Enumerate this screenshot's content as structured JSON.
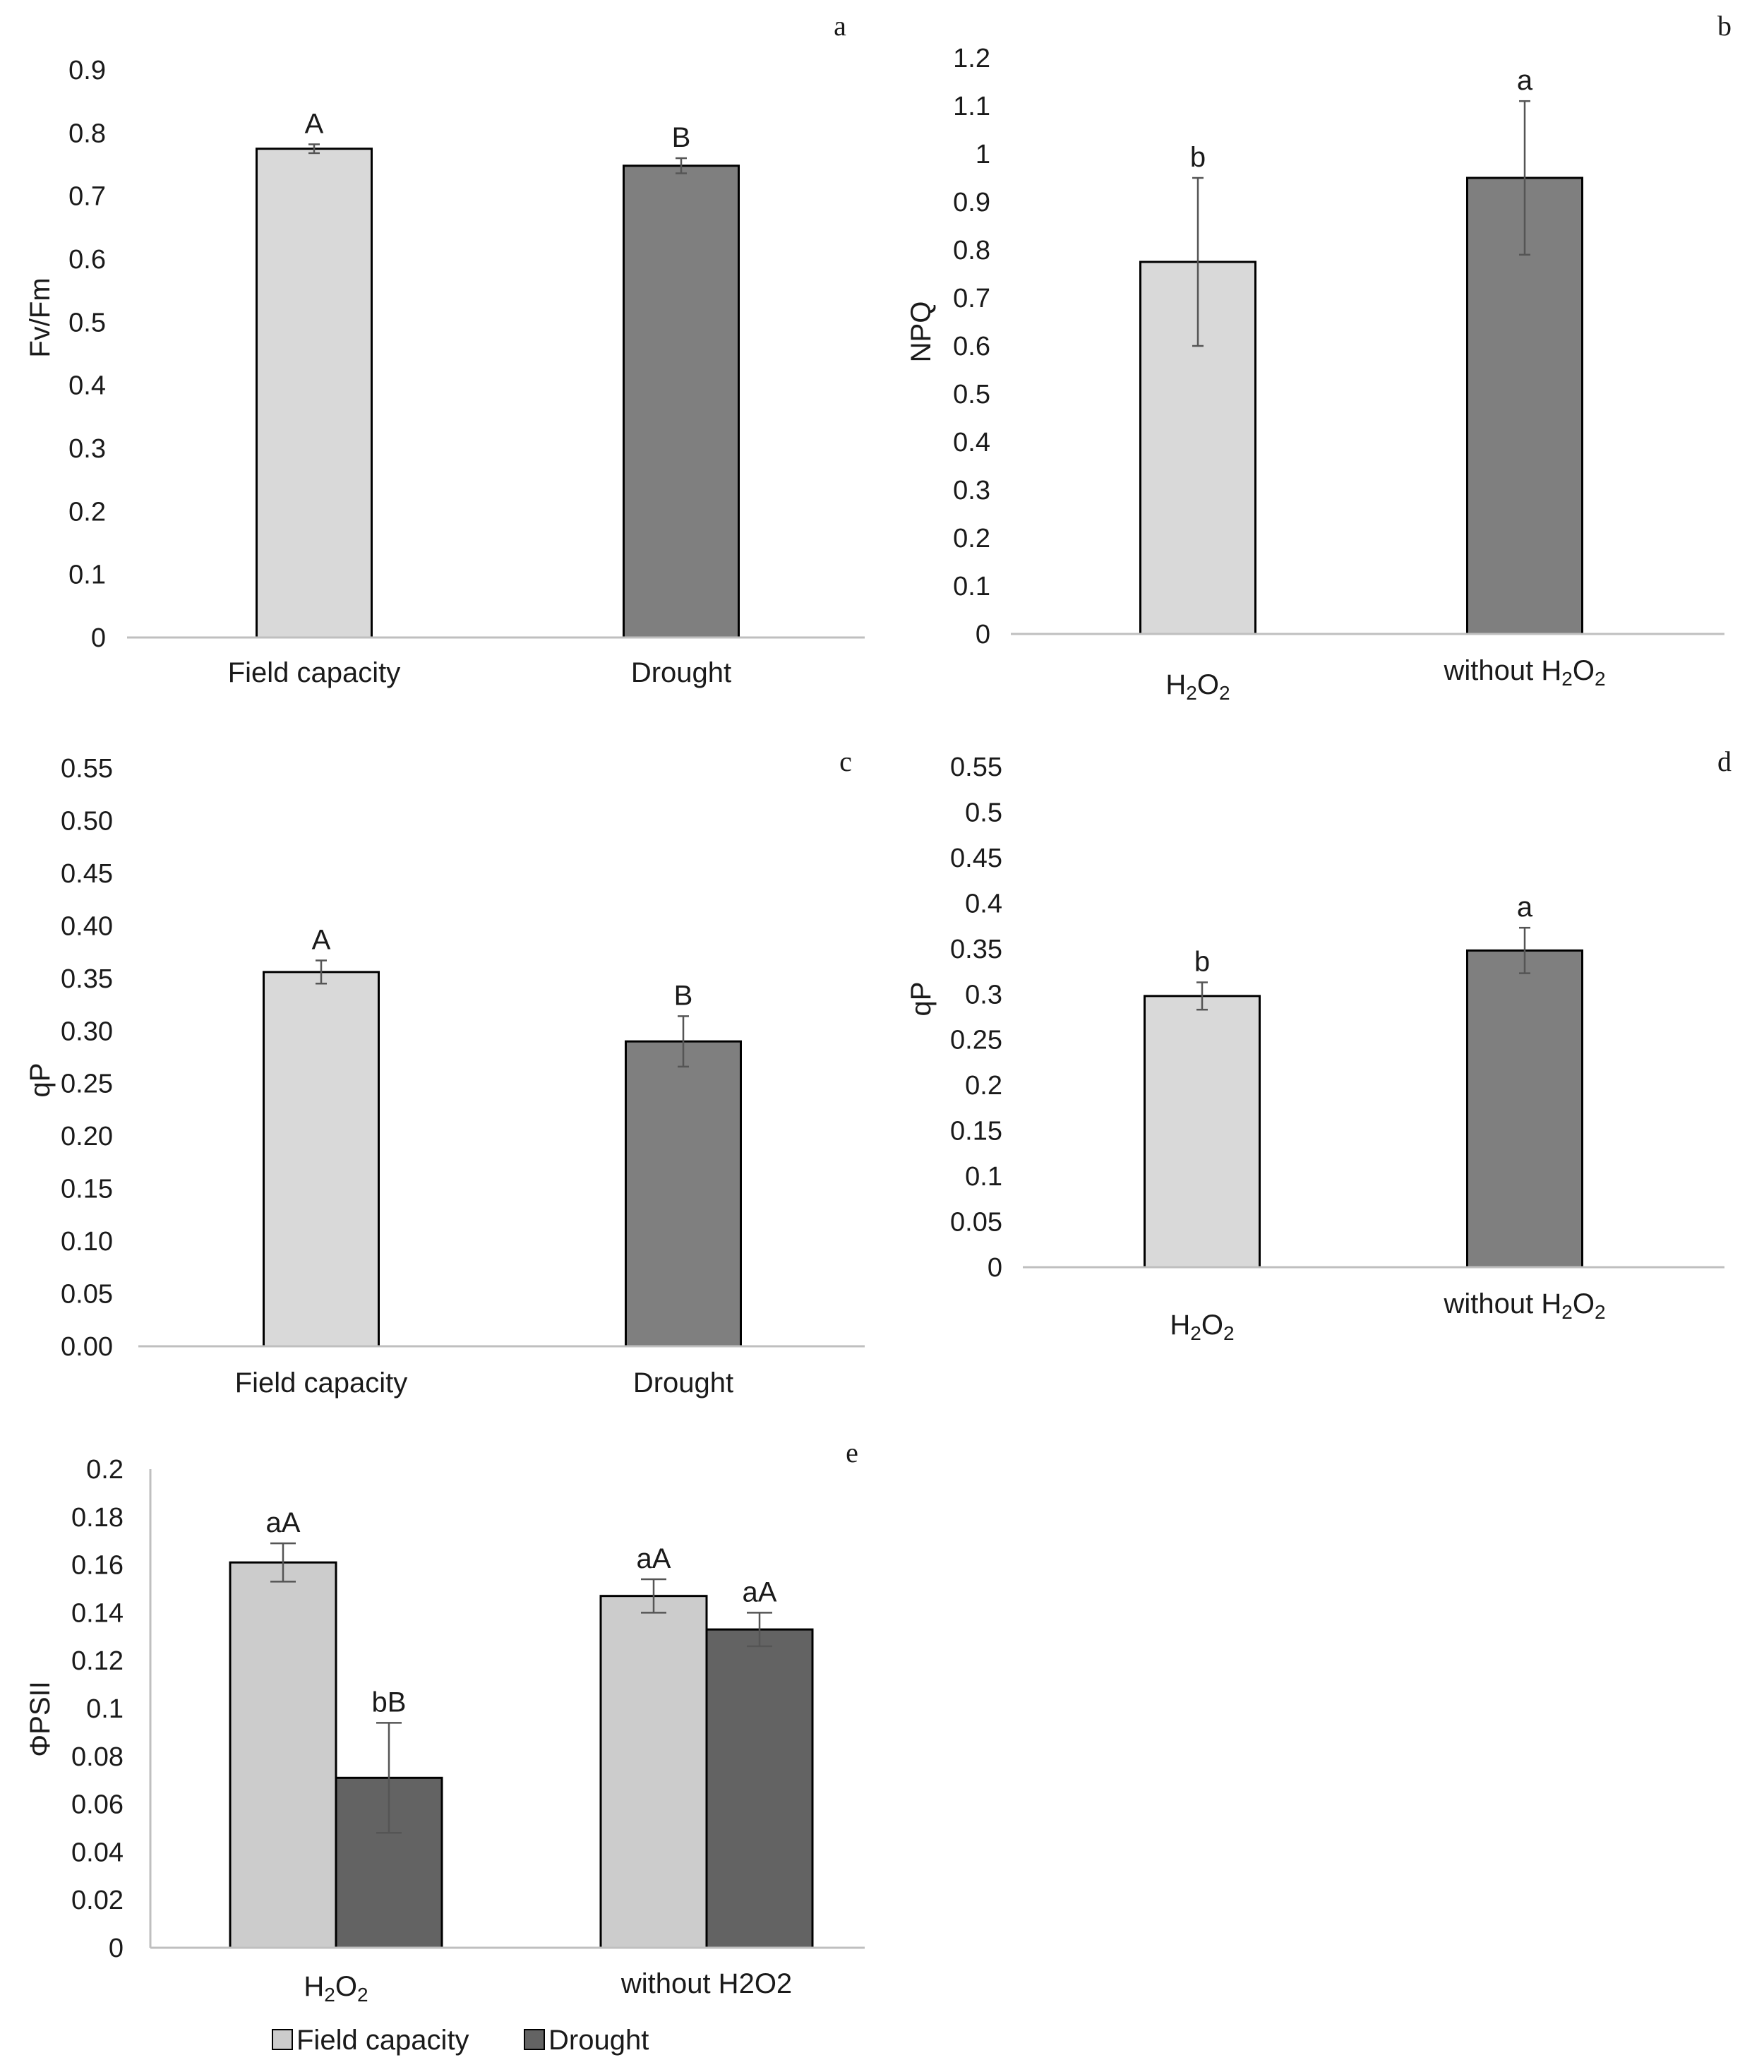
{
  "chart_data": [
    {
      "panel": "a",
      "type": "bar",
      "categories": [
        "Field capacity",
        "Drought"
      ],
      "values": [
        0.775,
        0.748
      ],
      "errors": [
        0.007,
        0.012
      ],
      "significance": [
        "A",
        "B"
      ],
      "colors": [
        "#d9d9d9",
        "#7f7f7f"
      ],
      "ylabel": "Fv/Fm",
      "ylim": [
        0,
        0.9
      ],
      "yticks": [
        "0",
        "0.1",
        "0.2",
        "0.3",
        "0.4",
        "0.5",
        "0.6",
        "0.7",
        "0.8",
        "0.9"
      ]
    },
    {
      "panel": "b",
      "type": "bar",
      "categories": [
        "H2O2",
        "without H2O2"
      ],
      "values": [
        0.775,
        0.95
      ],
      "errors": [
        0.175,
        0.16
      ],
      "significance": [
        "b",
        "a"
      ],
      "colors": [
        "#d9d9d9",
        "#7f7f7f"
      ],
      "ylabel": "NPQ",
      "ylim": [
        0,
        1.2
      ],
      "yticks": [
        "0",
        "0.1",
        "0.2",
        "0.3",
        "0.4",
        "0.5",
        "0.6",
        "0.7",
        "0.8",
        "0.9",
        "1",
        "1.1",
        "1.2"
      ]
    },
    {
      "panel": "c",
      "type": "bar",
      "categories": [
        "Field capacity",
        "Drought"
      ],
      "values": [
        0.356,
        0.29
      ],
      "errors": [
        0.011,
        0.024
      ],
      "significance": [
        "A",
        "B"
      ],
      "colors": [
        "#d9d9d9",
        "#7f7f7f"
      ],
      "ylabel": "qP",
      "ylim": [
        0,
        0.55
      ],
      "yticks": [
        "0.00",
        "0.05",
        "0.10",
        "0.15",
        "0.20",
        "0.25",
        "0.30",
        "0.35",
        "0.40",
        "0.45",
        "0.50",
        "0.55"
      ]
    },
    {
      "panel": "d",
      "type": "bar",
      "categories": [
        "H2O2",
        "without H2O2"
      ],
      "values": [
        0.298,
        0.348
      ],
      "errors": [
        0.015,
        0.025
      ],
      "significance": [
        "b",
        "a"
      ],
      "colors": [
        "#d9d9d9",
        "#7f7f7f"
      ],
      "ylabel": "qP",
      "ylim": [
        0,
        0.55
      ],
      "yticks": [
        "0",
        "0.05",
        "0.1",
        "0.15",
        "0.2",
        "0.25",
        "0.3",
        "0.35",
        "0.4",
        "0.45",
        "0.5",
        "0.55"
      ]
    },
    {
      "panel": "e",
      "type": "bar",
      "categories": [
        "H2O2",
        "without H2O2"
      ],
      "series": [
        {
          "name": "Field capacity",
          "values": [
            0.161,
            0.147
          ],
          "errors": [
            0.008,
            0.007
          ],
          "significance": [
            "aA",
            "aA"
          ],
          "color": "#cccccc"
        },
        {
          "name": "Drought",
          "values": [
            0.071,
            0.133
          ],
          "errors": [
            0.023,
            0.007
          ],
          "significance": [
            "bB",
            "aA"
          ],
          "color": "#636363"
        }
      ],
      "ylabel": "ΦPSII",
      "ylim": [
        0,
        0.2
      ],
      "yticks": [
        "0",
        "0.02",
        "0.04",
        "0.06",
        "0.08",
        "0.1",
        "0.12",
        "0.14",
        "0.16",
        "0.18",
        "0.2"
      ],
      "legend": [
        "Field capacity",
        "Drought"
      ]
    }
  ]
}
